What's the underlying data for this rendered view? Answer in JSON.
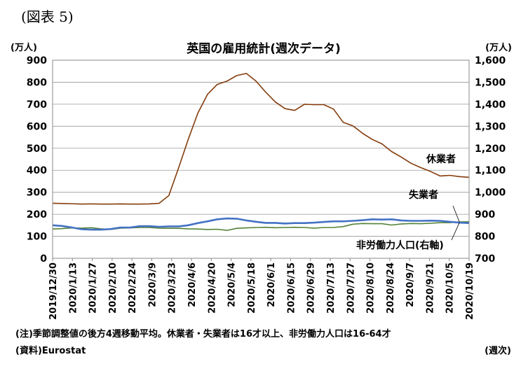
{
  "figure_label": "(図表 5)",
  "notes": {
    "note": "(注)季節調整値の後方4週移動平均。休業者・失業者は16才以上、非労働力人口は16-64才",
    "source": "(資料)Eurostat",
    "period_unit": "(週次)"
  },
  "chart_data": {
    "type": "line",
    "title": "英国の雇用統計(週次データ)",
    "ylabel_left": "(万人)",
    "ylabel_right": "(万人)",
    "ylim_left": [
      0,
      900
    ],
    "ylim_right": [
      700,
      1600
    ],
    "yticks_left": [
      "0",
      "100",
      "200",
      "300",
      "400",
      "500",
      "600",
      "700",
      "800",
      "900"
    ],
    "yticks_right": [
      "700",
      "800",
      "900",
      "1,000",
      "1,100",
      "1,200",
      "1,300",
      "1,400",
      "1,500",
      "1,600"
    ],
    "x_tick_labels": [
      "2019/12/30",
      "2020/1/13",
      "2020/1/27",
      "2020/2/10",
      "2020/2/24",
      "2020/3/9",
      "2020/3/23",
      "2020/4/6",
      "2020/4/20",
      "2020/5/4",
      "2020/5/18",
      "2020/6/1",
      "2020/6/15",
      "2020/6/29",
      "2020/7/13",
      "2020/7/27",
      "2020/8/10",
      "2020/8/24",
      "2020/9/7",
      "2020/9/21",
      "2020/10/5",
      "2020/10/19"
    ],
    "grid": true,
    "series": [
      {
        "name": "休業者",
        "axis": "left",
        "color": "#843c0c",
        "values": [
          250,
          249,
          248,
          246,
          247,
          246,
          246,
          247,
          246,
          246,
          247,
          250,
          285,
          410,
          540,
          660,
          745,
          790,
          805,
          830,
          840,
          805,
          755,
          710,
          680,
          672,
          700,
          698,
          698,
          678,
          618,
          602,
          568,
          540,
          520,
          485,
          460,
          432,
          412,
          395,
          374,
          377,
          371,
          368
        ]
      },
      {
        "name": "失業者",
        "axis": "left",
        "color": "#548235",
        "values": [
          133,
          135,
          138,
          137,
          139,
          134,
          131,
          137,
          138,
          140,
          140,
          137,
          136,
          136,
          134,
          133,
          131,
          132,
          127,
          136,
          138,
          140,
          141,
          139,
          140,
          141,
          140,
          137,
          140,
          140,
          144,
          155,
          158,
          157,
          157,
          151,
          156,
          158,
          157,
          159,
          162,
          162,
          165,
          166
        ]
      },
      {
        "name": "非労働力人口(右軸)",
        "axis": "right",
        "color": "#4472c4",
        "values": [
          850,
          847,
          840,
          832,
          830,
          830,
          833,
          840,
          840,
          846,
          846,
          843,
          845,
          845,
          850,
          860,
          868,
          877,
          881,
          880,
          872,
          866,
          861,
          861,
          858,
          860,
          860,
          862,
          865,
          868,
          868,
          870,
          873,
          877,
          876,
          877,
          872,
          870,
          870,
          871,
          870,
          866,
          862,
          860
        ]
      }
    ],
    "annotations": [
      "休業者",
      "失業者",
      "非労働力人口(右軸)"
    ]
  }
}
